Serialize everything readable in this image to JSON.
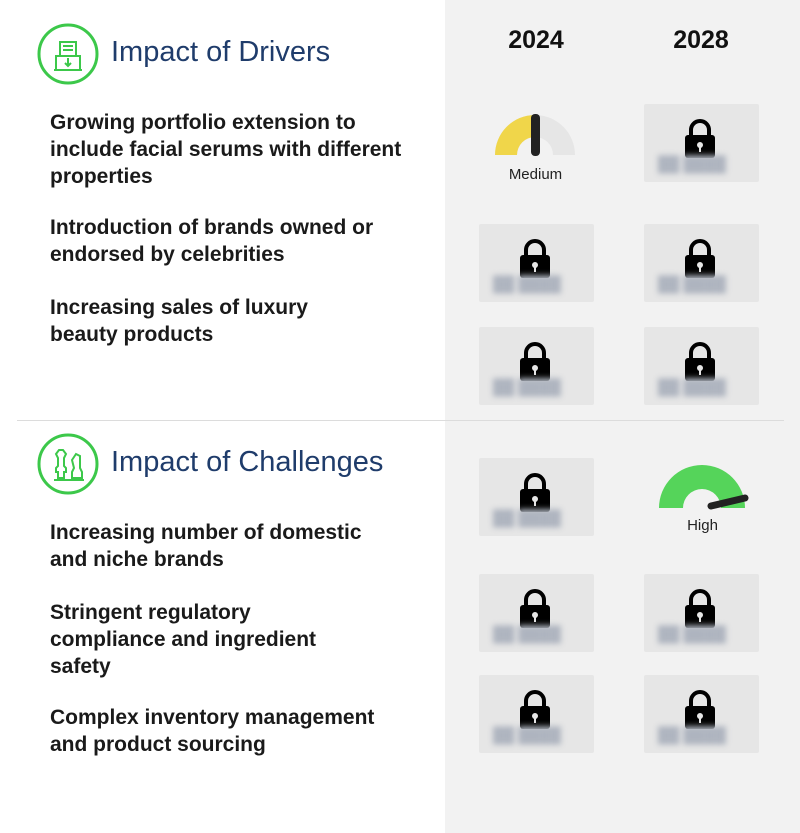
{
  "columns": [
    "2024",
    "2028"
  ],
  "drivers": {
    "title": "Impact of Drivers",
    "icon": "drivers-icon",
    "items": [
      {
        "text": "Growing portfolio extension to include facial serums with different properties",
        "y2024": {
          "type": "gauge",
          "label": "Medium",
          "color": "#f0d64a",
          "level": 0.5
        },
        "y2028": {
          "type": "locked"
        }
      },
      {
        "text": "Introduction of brands owned or endorsed by celebrities",
        "y2024": {
          "type": "locked"
        },
        "y2028": {
          "type": "locked"
        }
      },
      {
        "text": "Increasing sales of luxury beauty products",
        "y2024": {
          "type": "locked"
        },
        "y2028": {
          "type": "locked"
        }
      }
    ]
  },
  "challenges": {
    "title": "Impact of Challenges",
    "icon": "chess-icon",
    "items": [
      {
        "text": "Increasing number of domestic and niche brands",
        "y2024": {
          "type": "locked"
        },
        "y2028": {
          "type": "gauge",
          "label": "High",
          "color": "#55d45a",
          "level": 0.85
        }
      },
      {
        "text": "Stringent regulatory compliance and ingredient safety",
        "y2024": {
          "type": "locked"
        },
        "y2028": {
          "type": "locked"
        }
      },
      {
        "text": "Complex inventory management and product sourcing",
        "y2024": {
          "type": "locked"
        },
        "y2028": {
          "type": "locked"
        }
      }
    ]
  },
  "colors": {
    "accent": "#3cc84a",
    "title": "#1f3c6b",
    "panel": "#f2f2f2"
  }
}
